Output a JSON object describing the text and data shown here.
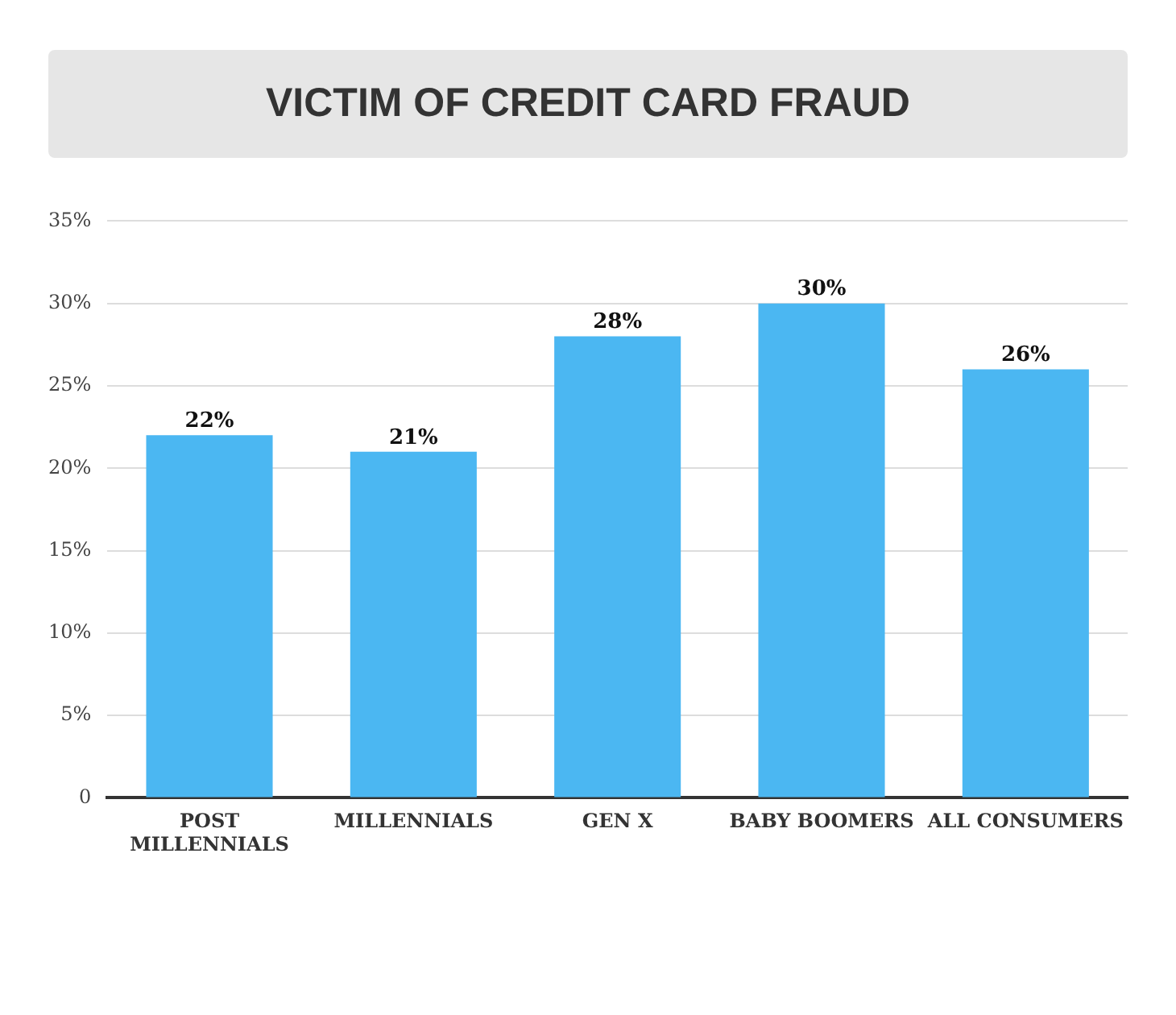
{
  "chart_data": {
    "type": "bar",
    "title": "VICTIM OF CREDIT CARD FRAUD",
    "categories": [
      "POST MILLENNIALS",
      "MILLENNIALS",
      "GEN X",
      "BABY BOOMERS",
      "ALL CONSUMERS"
    ],
    "values": [
      22,
      21,
      28,
      30,
      26
    ],
    "value_labels": [
      "22%",
      "21%",
      "28%",
      "30%",
      "26%"
    ],
    "color": "#4bb7f2",
    "ylim": [
      0,
      35
    ],
    "yticks": [
      {
        "value": 0,
        "label": "0"
      },
      {
        "value": 5,
        "label": "5%"
      },
      {
        "value": 10,
        "label": "10%"
      },
      {
        "value": 15,
        "label": "15%"
      },
      {
        "value": 20,
        "label": "20%"
      },
      {
        "value": 25,
        "label": "25%"
      },
      {
        "value": 30,
        "label": "30%"
      },
      {
        "value": 35,
        "label": "35%"
      }
    ],
    "grid": "y"
  }
}
